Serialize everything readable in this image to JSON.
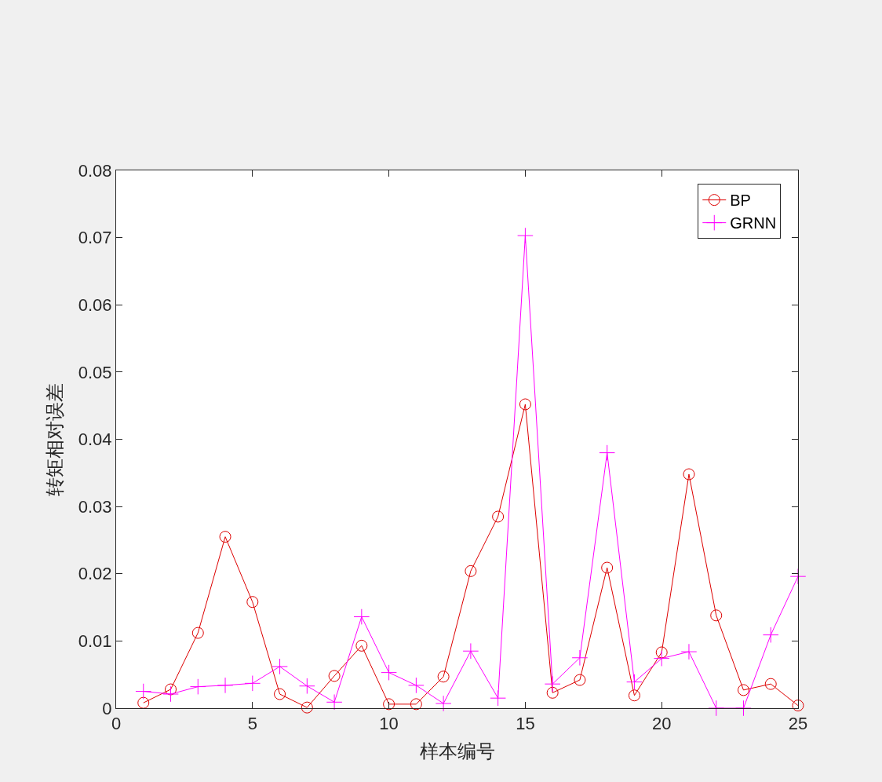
{
  "chart_data": {
    "type": "line",
    "xlabel": "样本编号",
    "ylabel": "转矩相对误差",
    "x": [
      1,
      2,
      3,
      4,
      5,
      6,
      7,
      8,
      9,
      10,
      11,
      12,
      13,
      14,
      15,
      16,
      17,
      18,
      19,
      20,
      21,
      22,
      23,
      24,
      25
    ],
    "series": [
      {
        "name": "BP",
        "color": "#dd0000",
        "marker": "circle",
        "values": [
          0.0008,
          0.0028,
          0.0112,
          0.0255,
          0.0158,
          0.0021,
          0.0001,
          0.0048,
          0.0093,
          0.0006,
          0.0006,
          0.0047,
          0.0204,
          0.0285,
          0.0452,
          0.0023,
          0.0042,
          0.0209,
          0.0019,
          0.0083,
          0.0348,
          0.0138,
          0.0027,
          0.0036,
          0.0004
        ]
      },
      {
        "name": "GRNN",
        "color": "#ff00ff",
        "marker": "cross",
        "values": [
          0.0025,
          0.0021,
          0.0032,
          0.0034,
          0.0037,
          0.0062,
          0.0033,
          0.0009,
          0.0136,
          0.0053,
          0.0034,
          0.0007,
          0.0085,
          0.0015,
          0.0703,
          0.0036,
          0.0075,
          0.038,
          0.0039,
          0.0074,
          0.0084,
          0,
          0,
          0.0109,
          0.0196
        ]
      }
    ],
    "xlim": [
      0,
      25
    ],
    "xticks": [
      0,
      5,
      10,
      15,
      20,
      25
    ],
    "ylim": [
      0,
      0.08
    ],
    "yticks": [
      0,
      0.01,
      0.02,
      0.03,
      0.04,
      0.05,
      0.06,
      0.07,
      0.08
    ],
    "grid": false,
    "legend": "top right",
    "line_style": "solid"
  }
}
